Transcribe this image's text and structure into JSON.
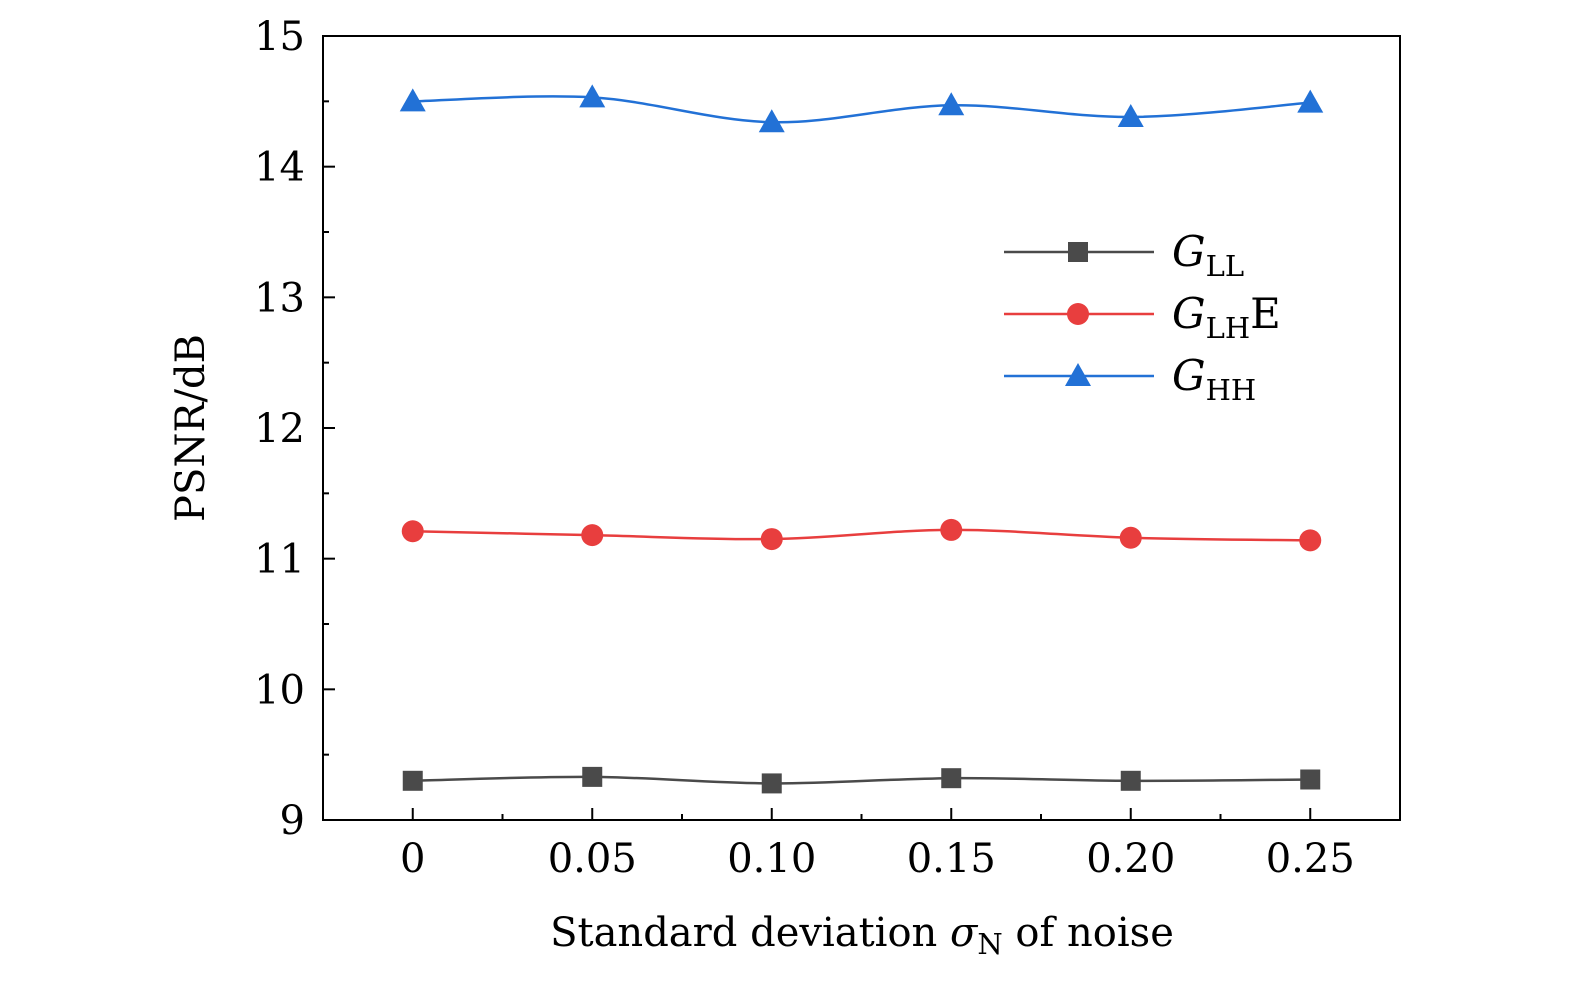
{
  "chart_data": {
    "type": "line",
    "x": [
      0,
      0.05,
      0.1,
      0.15,
      0.2,
      0.25
    ],
    "x_tick_labels": [
      "0",
      "0.05",
      "0.10",
      "0.15",
      "0.20",
      "0.25"
    ],
    "xlim": [
      -0.025,
      0.275
    ],
    "ylim": [
      9,
      15
    ],
    "y_ticks": [
      9,
      10,
      11,
      12,
      13,
      14,
      15
    ],
    "y_tick_labels": [
      "9",
      "10",
      "11",
      "12",
      "13",
      "14",
      "15"
    ],
    "xlabel": {
      "before": "Standard deviation ",
      "symbol": "σ",
      "subscript": "N",
      "after": " of noise"
    },
    "ylabel": "PSNR/dB",
    "title": "",
    "legend_position": "upper-right",
    "grid": false,
    "series": [
      {
        "name": "G_LL",
        "legend": {
          "main": "G",
          "sub": "LL",
          "suffix": ""
        },
        "color": "#4a4a4a",
        "marker": "square",
        "values": [
          9.3,
          9.33,
          9.28,
          9.32,
          9.3,
          9.31
        ]
      },
      {
        "name": "G_LH E",
        "legend": {
          "main": "G",
          "sub": "LH",
          "suffix": "E"
        },
        "color": "#e83e3e",
        "marker": "circle",
        "values": [
          11.21,
          11.18,
          11.15,
          11.22,
          11.16,
          11.14
        ]
      },
      {
        "name": "G_HH",
        "legend": {
          "main": "G",
          "sub": "HH",
          "suffix": ""
        },
        "color": "#2271d6",
        "marker": "triangle",
        "values": [
          14.5,
          14.53,
          14.34,
          14.47,
          14.38,
          14.49
        ]
      }
    ]
  }
}
